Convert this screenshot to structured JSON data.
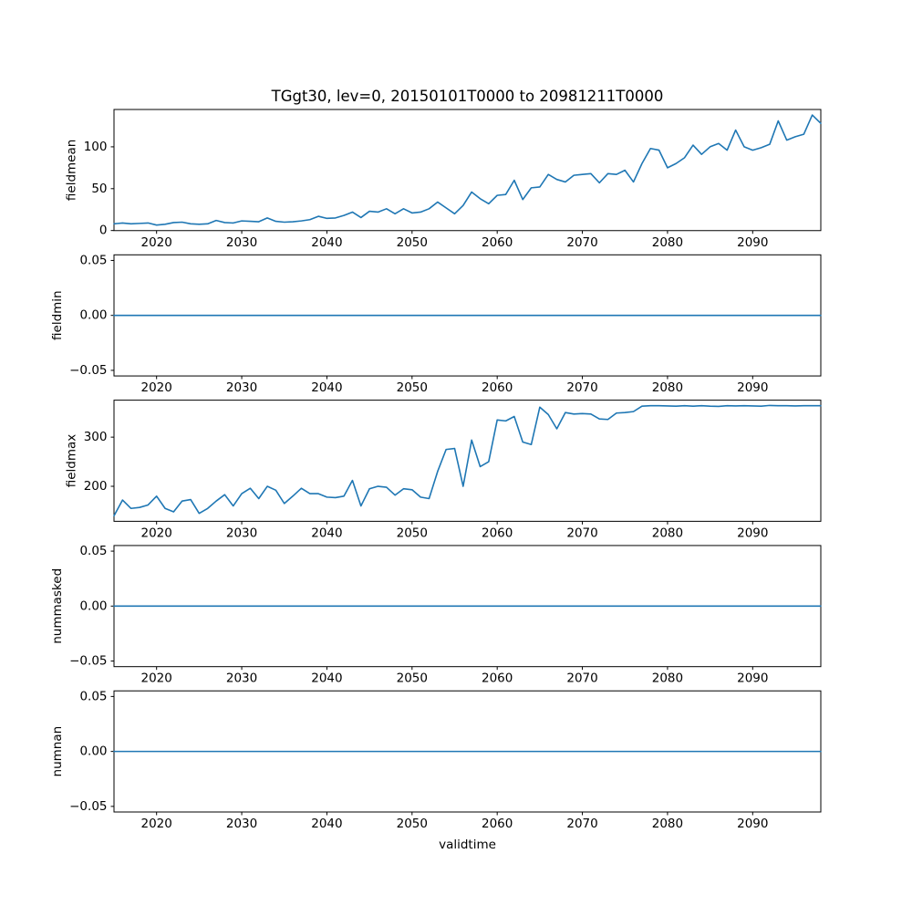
{
  "figure": {
    "title": "TGgt30, lev=0, 20150101T0000 to 20981211T0000",
    "xlabel": "validtime",
    "line_color": "#1f77b4",
    "background": "#ffffff",
    "spine_color": "#000000"
  },
  "x_axis": {
    "range": [
      2015,
      2098
    ],
    "tick_values": [
      2020,
      2030,
      2040,
      2050,
      2060,
      2070,
      2080,
      2090
    ],
    "tick_labels": [
      "2020",
      "2030",
      "2040",
      "2050",
      "2060",
      "2070",
      "2080",
      "2090"
    ]
  },
  "chart_data": [
    {
      "type": "line",
      "ylabel": "fieldmean",
      "ylim": [
        -0.1,
        144.6
      ],
      "ytick_values": [
        0,
        50,
        100
      ],
      "ytick_labels": [
        "0",
        "50",
        "100"
      ],
      "x_start": 2015,
      "x_step": 1,
      "values": [
        8,
        9,
        8,
        8.5,
        9,
        6.5,
        7.5,
        9.5,
        10,
        8,
        7.5,
        8,
        12,
        9.5,
        9,
        11.5,
        11,
        10.5,
        15,
        11,
        10,
        10.5,
        11.5,
        13,
        17,
        14.5,
        15,
        18,
        22,
        15.5,
        23,
        22,
        26,
        20,
        26,
        21,
        22,
        26,
        34,
        27,
        20,
        30,
        46,
        38,
        32,
        42,
        43,
        60,
        37,
        51,
        52,
        67,
        61,
        58,
        66,
        67,
        68,
        57,
        68,
        67,
        72,
        58,
        80,
        98,
        96,
        75,
        80,
        87,
        102,
        91,
        100,
        104,
        96,
        120,
        100,
        96,
        99,
        103,
        131,
        108,
        112,
        115,
        138,
        128
      ]
    },
    {
      "type": "line",
      "ylabel": "fieldmin",
      "ylim": [
        -0.0551,
        0.0551
      ],
      "ytick_values": [
        -0.05,
        0.0,
        0.05
      ],
      "ytick_labels": [
        "−0.05",
        "0.00",
        "0.05"
      ],
      "x_start": 2015,
      "x_step": 1,
      "constant_value": 0,
      "n_points": 84
    },
    {
      "type": "line",
      "ylabel": "fieldmax",
      "ylim": [
        128.8,
        375.2
      ],
      "ytick_values": [
        200,
        300
      ],
      "ytick_labels": [
        "200",
        "300"
      ],
      "x_start": 2015,
      "x_step": 1,
      "values": [
        140,
        172,
        155,
        157,
        162,
        180,
        155,
        148,
        170,
        173,
        145,
        155,
        170,
        183,
        160,
        185,
        196,
        175,
        200,
        192,
        165,
        180,
        196,
        185,
        185,
        178,
        177,
        180,
        212,
        160,
        195,
        200,
        198,
        182,
        195,
        193,
        178,
        175,
        230,
        275,
        277,
        200,
        294,
        240,
        250,
        335,
        333,
        342,
        290,
        285,
        361,
        346,
        317,
        350,
        347,
        348,
        347,
        337,
        336,
        349,
        350,
        352,
        363,
        364,
        364,
        363.5,
        363,
        364,
        363,
        364,
        363,
        362.5,
        364,
        363.5,
        364,
        363.5,
        363,
        364.5,
        364,
        364,
        363.5,
        364,
        364,
        364
      ]
    },
    {
      "type": "line",
      "ylabel": "nummasked",
      "ylim": [
        -0.0551,
        0.0551
      ],
      "ytick_values": [
        -0.05,
        0.0,
        0.05
      ],
      "ytick_labels": [
        "−0.05",
        "0.00",
        "0.05"
      ],
      "x_start": 2015,
      "x_step": 1,
      "constant_value": 0,
      "n_points": 84
    },
    {
      "type": "line",
      "ylabel": "numnan",
      "ylim": [
        -0.0551,
        0.0551
      ],
      "ytick_values": [
        -0.05,
        0.0,
        0.05
      ],
      "ytick_labels": [
        "−0.05",
        "0.00",
        "0.05"
      ],
      "x_start": 2015,
      "x_step": 1,
      "constant_value": 0,
      "n_points": 84
    }
  ]
}
